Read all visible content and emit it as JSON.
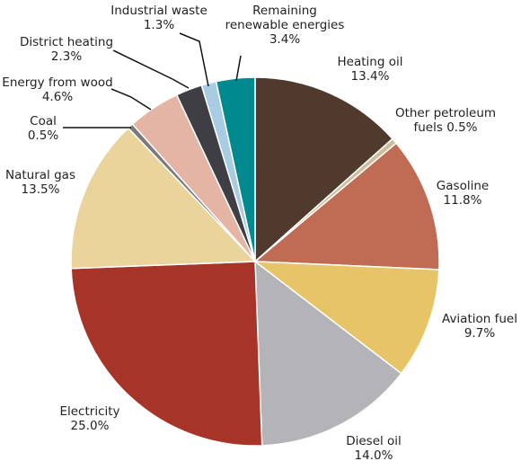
{
  "chart_data": {
    "type": "pie",
    "title": "",
    "start": "12 o'clock",
    "direction": "clockwise",
    "slices": [
      {
        "label": "Heating oil",
        "value": 13.4,
        "value_label": "13.4%",
        "color": "#4f3a2d"
      },
      {
        "label": "Other petroleum fuels",
        "value": 0.5,
        "value_label": "0.5%",
        "color": "#cdbd9c"
      },
      {
        "label": "Gasoline",
        "value": 11.8,
        "value_label": "11.8%",
        "color": "#c06c55"
      },
      {
        "label": "Aviation fuel",
        "value": 9.7,
        "value_label": "9.7%",
        "color": "#e6c467"
      },
      {
        "label": "Diesel oil",
        "value": 14.0,
        "value_label": "14.0%",
        "color": "#b3b3b8"
      },
      {
        "label": "Electricity",
        "value": 25.0,
        "value_label": "25.0%",
        "color": "#a63428"
      },
      {
        "label": "Natural gas",
        "value": 13.5,
        "value_label": "13.5%",
        "color": "#ead49c"
      },
      {
        "label": "Coal",
        "value": 0.5,
        "value_label": "0.5%",
        "color": "#7a7a7a"
      },
      {
        "label": "Energy from wood",
        "value": 4.6,
        "value_label": "4.6%",
        "color": "#e4b5a4"
      },
      {
        "label": "District heating",
        "value": 2.3,
        "value_label": "2.3%",
        "color": "#3e3e44"
      },
      {
        "label": "Industrial waste",
        "value": 1.3,
        "value_label": "1.3%",
        "color": "#a8cde3"
      },
      {
        "label": "Remaining renewable energies",
        "value": 3.4,
        "value_label": "3.4%",
        "color": "#008a8f"
      }
    ]
  }
}
